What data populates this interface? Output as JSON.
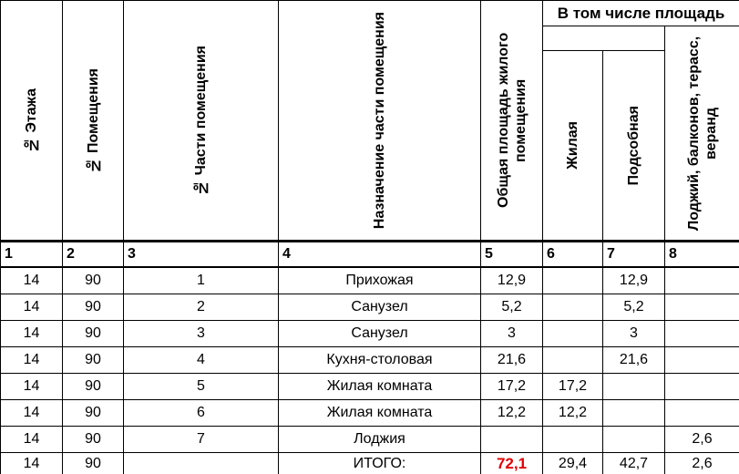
{
  "header": {
    "floor": "№ Этажа",
    "room": "№ Помещения",
    "part": "№ Части помещения",
    "purpose": "Назначение части помещения",
    "total_area": "Общая площадь жилого помещения",
    "including": "В том числе площадь",
    "living": "Жилая",
    "auxiliary": "Подсобная",
    "loggias": "Лоджий, балконов, терасс, веранд"
  },
  "column_numbers": [
    "1",
    "2",
    "3",
    "4",
    "5",
    "6",
    "7",
    "8"
  ],
  "rows": [
    [
      "14",
      "90",
      "1",
      "Прихожая",
      "12,9",
      "",
      "12,9",
      ""
    ],
    [
      "14",
      "90",
      "2",
      "Санузел",
      "5,2",
      "",
      "5,2",
      ""
    ],
    [
      "14",
      "90",
      "3",
      "Санузел",
      "3",
      "",
      "3",
      ""
    ],
    [
      "14",
      "90",
      "4",
      "Кухня-столовая",
      "21,6",
      "",
      "21,6",
      ""
    ],
    [
      "14",
      "90",
      "5",
      "Жилая комната",
      "17,2",
      "17,2",
      "",
      ""
    ],
    [
      "14",
      "90",
      "6",
      "Жилая комната",
      "12,2",
      "12,2",
      "",
      ""
    ],
    [
      "14",
      "90",
      "7",
      "Лоджия",
      "",
      "",
      "",
      "2,6"
    ],
    [
      "14",
      "90",
      "",
      "ИТОГО:",
      "72,1",
      "29,4",
      "42,7",
      "2,6"
    ]
  ],
  "colors": {
    "total_highlight": "#e00000"
  }
}
